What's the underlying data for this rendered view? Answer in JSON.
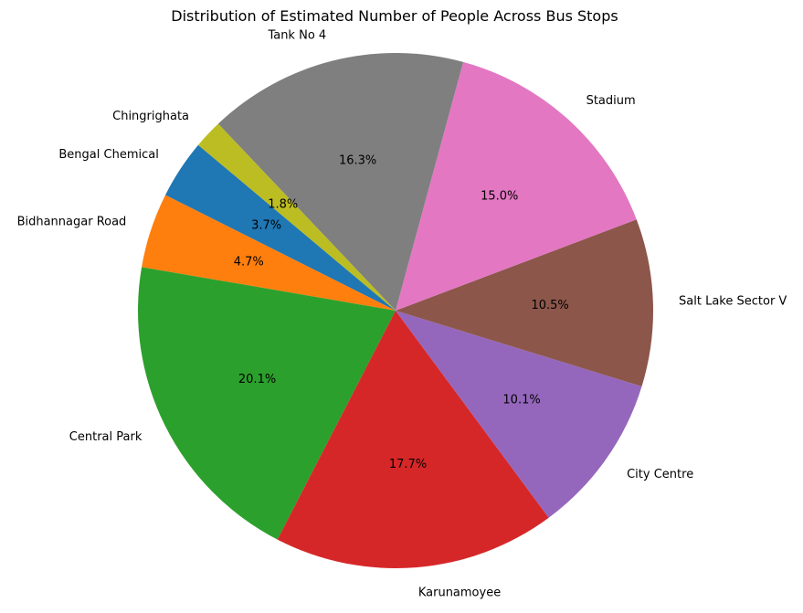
{
  "chart_data": {
    "type": "pie",
    "title": "Distribution of Estimated Number of People Across Bus Stops",
    "start_angle_deg": 140,
    "direction": "counterclockwise",
    "slices": [
      {
        "label": "Bengal Chemical",
        "value": 3.7,
        "pct_text": "3.7%",
        "color": "#1f77b4"
      },
      {
        "label": "Bidhannagar Road",
        "value": 4.7,
        "pct_text": "4.7%",
        "color": "#ff7f0e"
      },
      {
        "label": "Central Park",
        "value": 20.1,
        "pct_text": "20.1%",
        "color": "#2ca02c"
      },
      {
        "label": "Karunamoyee",
        "value": 17.7,
        "pct_text": "17.7%",
        "color": "#d62728"
      },
      {
        "label": "City Centre",
        "value": 10.1,
        "pct_text": "10.1%",
        "color": "#9467bd"
      },
      {
        "label": "Salt Lake Sector V",
        "value": 10.5,
        "pct_text": "10.5%",
        "color": "#8c564b"
      },
      {
        "label": "Stadium",
        "value": 15.0,
        "pct_text": "15.0%",
        "color": "#e377c2"
      },
      {
        "label": "Tank No 4",
        "value": 16.3,
        "pct_text": "16.3%",
        "color": "#7f7f7f"
      },
      {
        "label": "Chingrighata",
        "value": 1.8,
        "pct_text": "1.8%",
        "color": "#bcbd22"
      }
    ]
  }
}
